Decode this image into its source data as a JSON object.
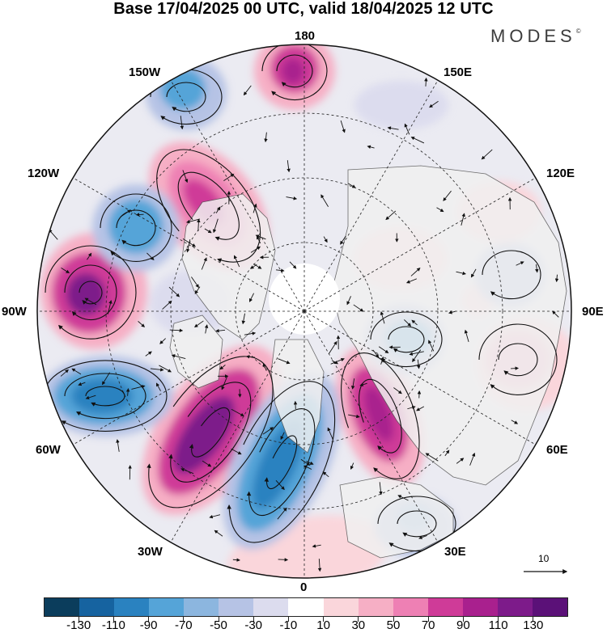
{
  "title": "Base 17/04/2025 00 UTC, valid 18/04/2025 12 UTC",
  "brand": "MODES",
  "brand_mark": "©",
  "longitude_labels": {
    "lon_180": "180",
    "lon_150w": "150W",
    "lon_150e": "150E",
    "lon_120w": "120W",
    "lon_120e": "120E",
    "lon_90w": "90W",
    "lon_90e": "90E",
    "lon_60w": "60W",
    "lon_60e": "60E",
    "lon_30w": "30W",
    "lon_30e": "30E",
    "lon_0": "0"
  },
  "reference_vector_label": "10",
  "colorbar": {
    "colors": [
      "#0b3d5c",
      "#1663a0",
      "#2a82c0",
      "#55a4d8",
      "#8cb6df",
      "#b6c3e5",
      "#dcdcee",
      "#ffffff",
      "#fad6db",
      "#f6afc5",
      "#ee80b4",
      "#cf3b98",
      "#a9208e",
      "#7d1b8a",
      "#5b1178"
    ],
    "tick_labels": [
      "-130",
      "-110",
      "-90",
      "-70",
      "-50",
      "-30",
      "-10",
      "10",
      "30",
      "50",
      "70",
      "90",
      "110",
      "130"
    ]
  },
  "colors": {
    "land_fill": "#f0f0f0",
    "coastline": "#555555",
    "graticule": "#222222"
  }
}
